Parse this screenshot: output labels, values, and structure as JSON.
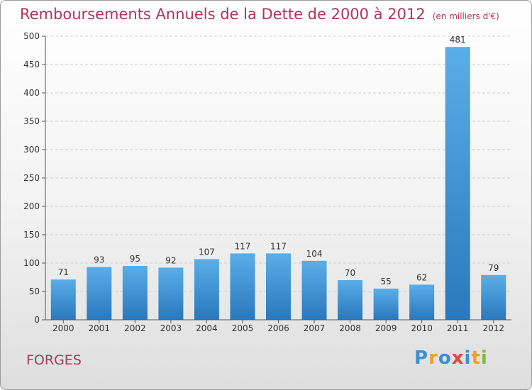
{
  "header": {
    "title": "Remboursements Annuels de la Dette de 2000 à 2012",
    "subtitle": "(en milliers d'€)"
  },
  "footer": {
    "commune": "FORGES",
    "logo_letters": [
      "P",
      "r",
      "o",
      "x",
      "i",
      "t",
      "i"
    ],
    "logo_colors": [
      "#3a8fd8",
      "#f0a024",
      "#3a8fd8",
      "#e8453c",
      "#3a8fd8",
      "#f0a024",
      "#7cbf3a"
    ]
  },
  "chart_data": {
    "type": "bar",
    "categories": [
      "2000",
      "2001",
      "2002",
      "2003",
      "2004",
      "2005",
      "2006",
      "2007",
      "2008",
      "2009",
      "2010",
      "2011",
      "2012"
    ],
    "values": [
      71,
      93,
      95,
      92,
      107,
      117,
      117,
      104,
      70,
      55,
      62,
      481,
      79
    ],
    "data_labels": [
      "71",
      "93",
      "95",
      "92",
      "107",
      "117",
      "117",
      "104",
      "70",
      "55",
      "62",
      "481",
      "79"
    ],
    "y_ticks": [
      0,
      50,
      100,
      150,
      200,
      250,
      300,
      350,
      400,
      450,
      500
    ],
    "ylim": [
      0,
      500
    ],
    "grid": true,
    "bar_color_top": "#5aaee8",
    "bar_color_bottom": "#2a78bd",
    "title_color": "#b0325f"
  }
}
